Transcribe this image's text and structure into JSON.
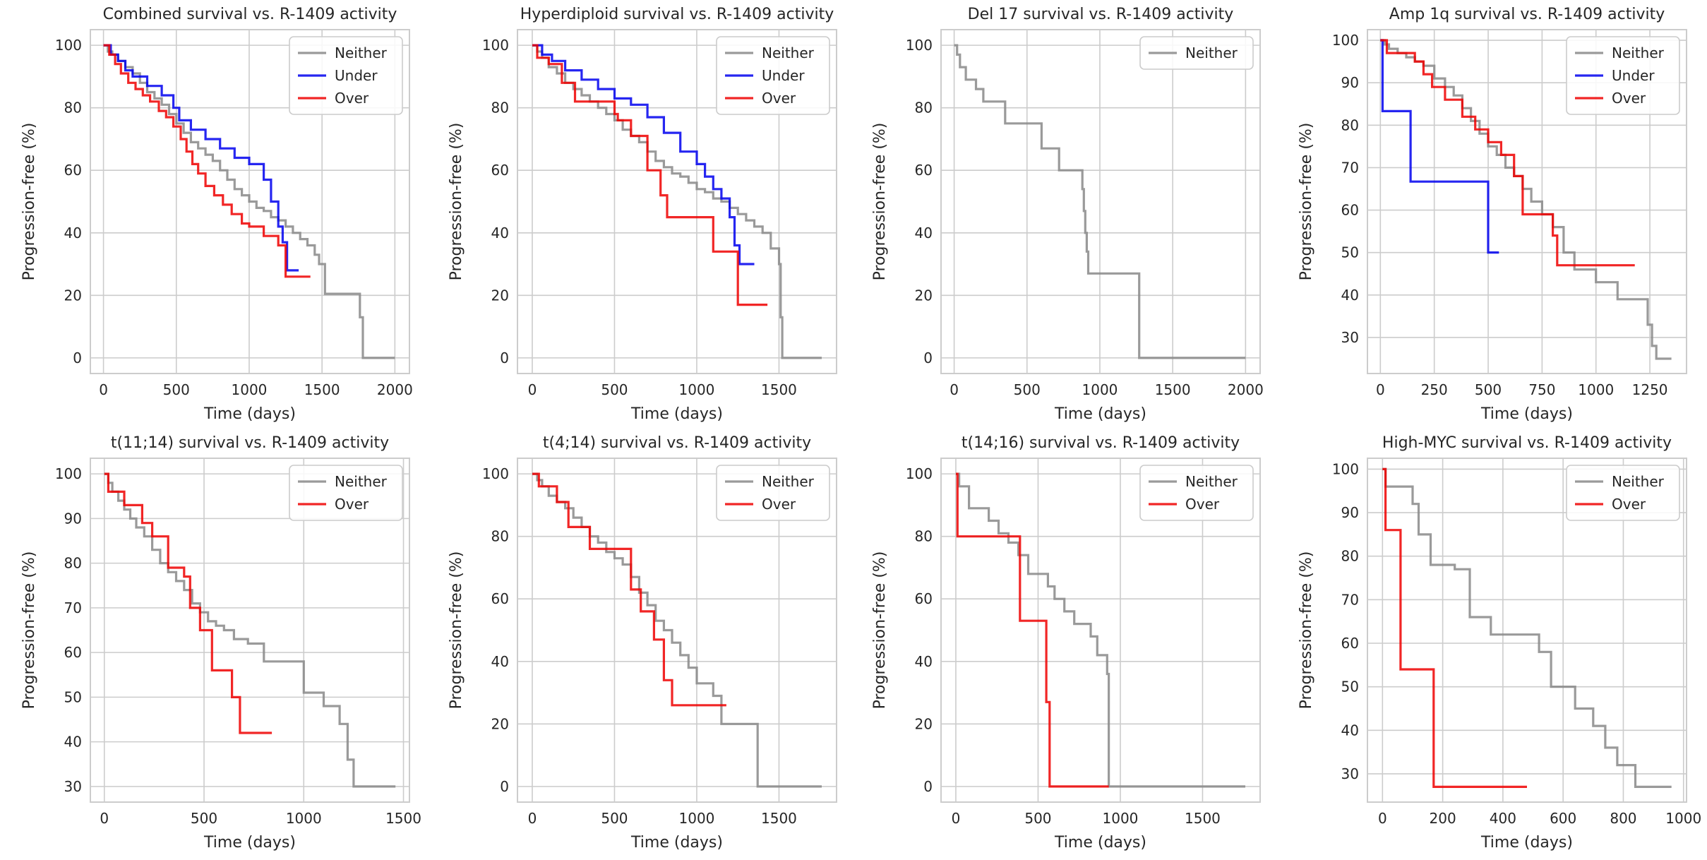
{
  "figure": {
    "background": "#ffffff"
  },
  "colors": {
    "Neither": "#888888",
    "Under": "#0000ee",
    "Over": "#ee0000"
  },
  "chart_data": [
    {
      "type": "line",
      "title": "Combined survival vs. R-1409 activity",
      "xlabel": "Time (days)",
      "ylabel": "Progression-free (%)",
      "xlim": [
        -90,
        2100
      ],
      "ylim": [
        -5,
        105
      ],
      "xticks": [
        0,
        500,
        1000,
        1500,
        2000
      ],
      "yticks": [
        0,
        20,
        40,
        60,
        80,
        100
      ],
      "grid": true,
      "legend": "top-right",
      "series": [
        {
          "name": "Neither",
          "x": [
            0,
            30,
            60,
            100,
            150,
            200,
            250,
            300,
            350,
            400,
            450,
            500,
            550,
            600,
            650,
            700,
            750,
            800,
            850,
            900,
            950,
            1000,
            1050,
            1100,
            1150,
            1200,
            1250,
            1300,
            1350,
            1400,
            1450,
            1480,
            1520,
            1600,
            1680,
            1760,
            1780,
            2000
          ],
          "y": [
            100,
            98,
            97,
            95,
            93,
            91,
            88,
            85,
            83,
            81,
            78,
            75,
            72,
            69,
            67,
            65,
            63,
            60,
            57,
            54,
            52,
            50,
            48,
            47,
            45,
            44,
            42,
            40,
            38,
            36,
            33,
            30,
            20.5,
            20.5,
            20.5,
            13,
            0,
            0
          ]
        },
        {
          "name": "Under",
          "x": [
            0,
            50,
            100,
            150,
            200,
            300,
            400,
            480,
            520,
            600,
            700,
            800,
            900,
            1000,
            1100,
            1150,
            1200,
            1230,
            1260,
            1340
          ],
          "y": [
            100,
            97,
            95,
            92,
            90,
            87,
            84,
            80,
            76,
            73,
            70,
            67,
            64,
            62,
            57,
            50,
            42,
            37,
            28,
            28
          ]
        },
        {
          "name": "Over",
          "x": [
            0,
            40,
            80,
            120,
            170,
            220,
            270,
            320,
            380,
            430,
            480,
            530,
            570,
            610,
            650,
            700,
            760,
            820,
            880,
            950,
            1000,
            1100,
            1200,
            1250,
            1420
          ],
          "y": [
            100,
            97,
            94,
            91,
            88,
            86,
            84,
            82,
            79,
            77,
            74,
            70,
            66,
            62,
            59,
            55,
            52,
            49,
            46,
            43,
            42,
            39,
            36,
            26,
            26
          ]
        }
      ]
    },
    {
      "type": "line",
      "title": "Hyperdiploid survival vs. R-1409 activity",
      "xlabel": "Time (days)",
      "ylabel": "Progression-free (%)",
      "xlim": [
        -90,
        1850
      ],
      "ylim": [
        -5,
        105
      ],
      "xticks": [
        0,
        500,
        1000,
        1500
      ],
      "yticks": [
        0,
        20,
        40,
        60,
        80,
        100
      ],
      "grid": true,
      "legend": "top-right",
      "series": [
        {
          "name": "Neither",
          "x": [
            0,
            30,
            60,
            100,
            150,
            200,
            250,
            300,
            350,
            400,
            450,
            500,
            550,
            600,
            650,
            700,
            750,
            800,
            850,
            900,
            950,
            1000,
            1050,
            1100,
            1150,
            1200,
            1250,
            1300,
            1350,
            1400,
            1450,
            1500,
            1510,
            1520,
            1760
          ],
          "y": [
            100,
            98,
            96,
            93,
            91,
            88,
            86,
            84,
            82,
            80,
            78,
            76,
            73,
            71,
            69,
            66,
            63,
            61,
            59,
            58,
            56,
            54,
            53,
            51,
            50,
            48,
            46,
            44,
            42,
            40,
            35,
            30,
            13,
            0,
            0
          ]
        },
        {
          "name": "Under",
          "x": [
            0,
            60,
            120,
            200,
            300,
            400,
            500,
            600,
            700,
            800,
            900,
            1000,
            1050,
            1100,
            1150,
            1200,
            1230,
            1260,
            1350
          ],
          "y": [
            100,
            97,
            95,
            92,
            89,
            86,
            83,
            81,
            77,
            72,
            66,
            62,
            58,
            54,
            51,
            45,
            36,
            30,
            30
          ]
        },
        {
          "name": "Over",
          "x": [
            0,
            30,
            100,
            180,
            260,
            400,
            500,
            520,
            600,
            700,
            780,
            820,
            900,
            1000,
            1100,
            1150,
            1250,
            1430
          ],
          "y": [
            100,
            96,
            94,
            88,
            82,
            82,
            78,
            76,
            71,
            60,
            52,
            45,
            45,
            45,
            34,
            34,
            17,
            17
          ]
        }
      ]
    },
    {
      "type": "line",
      "title": "Del 17 survival vs. R-1409 activity",
      "xlabel": "Time (days)",
      "ylabel": "Progression-free (%)",
      "xlim": [
        -90,
        2100
      ],
      "ylim": [
        -5,
        105
      ],
      "xticks": [
        0,
        500,
        1000,
        1500,
        2000
      ],
      "yticks": [
        0,
        20,
        40,
        60,
        80,
        100
      ],
      "grid": true,
      "legend": "top-right",
      "series": [
        {
          "name": "Neither",
          "x": [
            0,
            20,
            40,
            80,
            150,
            200,
            350,
            400,
            550,
            600,
            720,
            870,
            880,
            890,
            900,
            910,
            920,
            1250,
            1270,
            2000
          ],
          "y": [
            100,
            97,
            93,
            89,
            86,
            82,
            75,
            75,
            75,
            67,
            60,
            60,
            54,
            47,
            40,
            34,
            27,
            27,
            0,
            0
          ]
        }
      ]
    },
    {
      "type": "line",
      "title": "Amp 1q survival vs. R-1409 activity",
      "xlabel": "Time (days)",
      "ylabel": "Progression-free (%)",
      "xlim": [
        -60,
        1420
      ],
      "ylim": [
        21.5,
        102.5
      ],
      "xticks": [
        0,
        250,
        500,
        750,
        1000,
        1250
      ],
      "yticks": [
        30,
        40,
        50,
        60,
        70,
        80,
        90,
        100
      ],
      "grid": true,
      "legend": "top-right",
      "series": [
        {
          "name": "Neither",
          "x": [
            0,
            20,
            40,
            80,
            120,
            160,
            200,
            250,
            300,
            340,
            380,
            420,
            460,
            500,
            540,
            580,
            620,
            660,
            700,
            750,
            800,
            850,
            900,
            1000,
            1100,
            1200,
            1240,
            1260,
            1280,
            1350
          ],
          "y": [
            100,
            99,
            98,
            97,
            96,
            95,
            94,
            91,
            89,
            87,
            84,
            81,
            78,
            75,
            73,
            70,
            68,
            65,
            62,
            59,
            56,
            50,
            46,
            43,
            39,
            39,
            33,
            28,
            25,
            25
          ]
        },
        {
          "name": "Under",
          "x": [
            0,
            10,
            140,
            500,
            550
          ],
          "y": [
            100,
            83.3,
            66.7,
            50,
            50
          ]
        },
        {
          "name": "Over",
          "x": [
            0,
            30,
            160,
            200,
            240,
            300,
            380,
            440,
            500,
            560,
            620,
            660,
            760,
            800,
            820,
            900,
            1000,
            1180
          ],
          "y": [
            100,
            97,
            95,
            92,
            89,
            86,
            82,
            79,
            76,
            73,
            68,
            59,
            59,
            54,
            47,
            47,
            47,
            47
          ]
        }
      ]
    },
    {
      "type": "line",
      "title": "t(11;14) survival vs. R-1409 activity",
      "xlabel": "Time (days)",
      "ylabel": "Progression-free (%)",
      "xlim": [
        -70,
        1530
      ],
      "ylim": [
        26.5,
        103.5
      ],
      "xticks": [
        0,
        500,
        1000,
        1500
      ],
      "yticks": [
        30,
        40,
        50,
        60,
        70,
        80,
        90,
        100
      ],
      "grid": true,
      "legend": "top-right",
      "series": [
        {
          "name": "Neither",
          "x": [
            0,
            20,
            40,
            70,
            100,
            130,
            160,
            200,
            240,
            280,
            320,
            360,
            400,
            440,
            480,
            520,
            560,
            600,
            650,
            720,
            800,
            870,
            1000,
            1050,
            1100,
            1180,
            1220,
            1250,
            1460
          ],
          "y": [
            100,
            98,
            96,
            94,
            92,
            90,
            88,
            86,
            83,
            80,
            78,
            76,
            74,
            71,
            69,
            67,
            66,
            65,
            63,
            62,
            58,
            58,
            51,
            51,
            48,
            44,
            36,
            30,
            30
          ]
        },
        {
          "name": "Over",
          "x": [
            0,
            20,
            100,
            190,
            240,
            320,
            400,
            430,
            480,
            540,
            640,
            680,
            840
          ],
          "y": [
            100,
            96,
            93,
            89,
            86,
            79,
            77,
            70,
            65,
            56,
            50,
            42,
            42
          ]
        }
      ]
    },
    {
      "type": "line",
      "title": "t(4;14) survival vs. R-1409 activity",
      "xlabel": "Time (days)",
      "ylabel": "Progression-free (%)",
      "xlim": [
        -90,
        1850
      ],
      "ylim": [
        -5,
        105
      ],
      "xticks": [
        0,
        500,
        1000,
        1500
      ],
      "yticks": [
        0,
        20,
        40,
        60,
        80,
        100
      ],
      "grid": true,
      "legend": "top-right",
      "series": [
        {
          "name": "Neither",
          "x": [
            0,
            30,
            60,
            100,
            150,
            200,
            250,
            300,
            350,
            400,
            450,
            500,
            550,
            600,
            650,
            700,
            750,
            800,
            850,
            900,
            950,
            1000,
            1100,
            1150,
            1350,
            1370,
            1760
          ],
          "y": [
            100,
            98,
            96,
            93,
            91,
            89,
            86,
            83,
            80,
            78,
            75,
            73,
            71,
            67,
            62,
            58,
            53,
            50,
            46,
            42,
            38,
            33,
            29,
            20,
            20,
            0,
            0
          ]
        },
        {
          "name": "Over",
          "x": [
            0,
            40,
            150,
            220,
            350,
            400,
            560,
            600,
            660,
            740,
            800,
            850,
            1000,
            1100,
            1180
          ],
          "y": [
            100,
            96,
            91,
            83,
            76,
            76,
            76,
            63,
            56,
            47,
            34,
            26,
            26,
            26,
            26
          ]
        }
      ]
    },
    {
      "type": "line",
      "title": "t(14;16) survival vs. R-1409 activity",
      "xlabel": "Time (days)",
      "ylabel": "Progression-free (%)",
      "xlim": [
        -90,
        1850
      ],
      "ylim": [
        -5,
        105
      ],
      "xticks": [
        0,
        500,
        1000,
        1500
      ],
      "yticks": [
        0,
        20,
        40,
        60,
        80,
        100
      ],
      "grid": true,
      "legend": "top-right",
      "series": [
        {
          "name": "Neither",
          "x": [
            0,
            20,
            80,
            200,
            260,
            320,
            380,
            440,
            560,
            600,
            660,
            720,
            820,
            860,
            920,
            930,
            1760
          ],
          "y": [
            100,
            96,
            89,
            85,
            81,
            78,
            74,
            68,
            64,
            60,
            56,
            52,
            48,
            42,
            36,
            0,
            0
          ]
        },
        {
          "name": "Over",
          "x": [
            0,
            10,
            390,
            550,
            560,
            570,
            930
          ],
          "y": [
            100,
            80,
            53,
            27,
            27,
            0,
            0
          ]
        }
      ]
    },
    {
      "type": "line",
      "title": "High-MYC survival vs. R-1409 activity",
      "xlabel": "Time (days)",
      "ylabel": "Progression-free (%)",
      "xlim": [
        -50,
        1010
      ],
      "ylim": [
        23.5,
        102.5
      ],
      "xticks": [
        0,
        200,
        400,
        600,
        800,
        1000
      ],
      "yticks": [
        30,
        40,
        50,
        60,
        70,
        80,
        90,
        100
      ],
      "grid": true,
      "legend": "top-right",
      "series": [
        {
          "name": "Neither",
          "x": [
            0,
            10,
            100,
            120,
            160,
            240,
            290,
            360,
            520,
            560,
            640,
            700,
            740,
            780,
            840,
            960
          ],
          "y": [
            100,
            96,
            92,
            85,
            78,
            77,
            66,
            62,
            58,
            50,
            45,
            41,
            36,
            32,
            27,
            27
          ]
        },
        {
          "name": "Over",
          "x": [
            0,
            10,
            60,
            170,
            480
          ],
          "y": [
            100,
            86,
            54,
            27,
            27
          ]
        }
      ]
    }
  ]
}
